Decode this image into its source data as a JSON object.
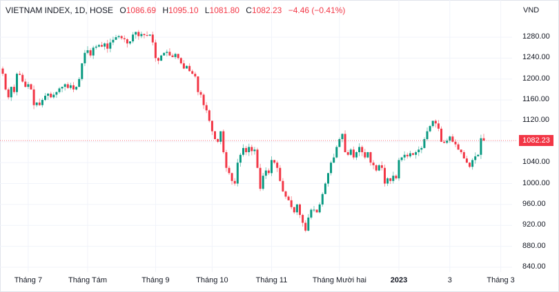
{
  "legend": {
    "symbol": "VIETNAM INDEX, 1D, HOSE",
    "open_label": "O",
    "open": "1086.69",
    "high_label": "H",
    "high": "1095.10",
    "low_label": "L",
    "low": "1081.80",
    "close_label": "C",
    "close": "1082.23",
    "change": "−4.46 (−0.41%)"
  },
  "colors": {
    "up": "#089981",
    "down": "#f23645",
    "grid": "#f0f3fa"
  },
  "chart_data": {
    "type": "candlestick",
    "title": "VIETNAM INDEX, 1D, HOSE",
    "ylabel": "VND",
    "ylim": [
      820,
      1310
    ],
    "y_ticks": [
      "1280.00",
      "1240.00",
      "1200.00",
      "1160.00",
      "1120.00",
      "1080.00",
      "1040.00",
      "1000.00",
      "960.00",
      "920.00",
      "880.00",
      "840.00"
    ],
    "y_tick_values": [
      1280,
      1240,
      1200,
      1160,
      1120,
      1080,
      1040,
      1000,
      960,
      920,
      880,
      840
    ],
    "x_ticks": [
      {
        "label": "Tháng 7",
        "index": 9
      },
      {
        "label": "Tháng Tám",
        "index": 30
      },
      {
        "label": "Tháng 9",
        "index": 54
      },
      {
        "label": "Tháng 10",
        "index": 74
      },
      {
        "label": "Tháng 11",
        "index": 95
      },
      {
        "label": "Tháng Mười hai",
        "index": 119
      },
      {
        "label": "2023",
        "index": 140,
        "bold": true
      },
      {
        "label": "3",
        "index": 158
      },
      {
        "label": "Tháng 3",
        "index": 176
      }
    ],
    "first_open": 1220,
    "closes": [
      1210,
      1180,
      1165,
      1185,
      1175,
      1210,
      1208,
      1195,
      1185,
      1190,
      1180,
      1150,
      1155,
      1150,
      1160,
      1168,
      1172,
      1165,
      1170,
      1175,
      1182,
      1185,
      1190,
      1183,
      1188,
      1180,
      1185,
      1200,
      1230,
      1250,
      1255,
      1245,
      1260,
      1262,
      1265,
      1262,
      1268,
      1258,
      1270,
      1275,
      1280,
      1282,
      1278,
      1276,
      1268,
      1272,
      1285,
      1290,
      1282,
      1286,
      1284,
      1283,
      1285,
      1270,
      1240,
      1235,
      1245,
      1250,
      1252,
      1245,
      1242,
      1248,
      1240,
      1230,
      1220,
      1225,
      1215,
      1210,
      1205,
      1175,
      1170,
      1150,
      1140,
      1120,
      1100,
      1085,
      1080,
      1100,
      1060,
      1030,
      1020,
      1005,
      1000,
      1040,
      1055,
      1068,
      1060,
      1070,
      1062,
      1065,
      1030,
      990,
      1015,
      1025,
      1020,
      1045,
      1040,
      1030,
      1005,
      985,
      975,
      968,
      955,
      945,
      960,
      940,
      925,
      910,
      935,
      950,
      950,
      945,
      960,
      980,
      1000,
      1020,
      1040,
      1050,
      1070,
      1085,
      1095,
      1060,
      1055,
      1065,
      1050,
      1060,
      1070,
      1060,
      1050,
      1060,
      1040,
      1035,
      1025,
      1035,
      1030,
      1000,
      1010,
      1005,
      1015,
      1010,
      1045,
      1050,
      1055,
      1052,
      1058,
      1055,
      1060,
      1065,
      1068,
      1085,
      1100,
      1110,
      1120,
      1115,
      1105,
      1080,
      1078,
      1082,
      1090,
      1080,
      1075,
      1065,
      1060,
      1048,
      1040,
      1032,
      1045,
      1052,
      1055,
      1086.69,
      1082.23
    ],
    "last": {
      "open": 1086.69,
      "high": 1095.1,
      "low": 1081.8,
      "close": 1082.23
    },
    "current_price": "1082.23"
  }
}
